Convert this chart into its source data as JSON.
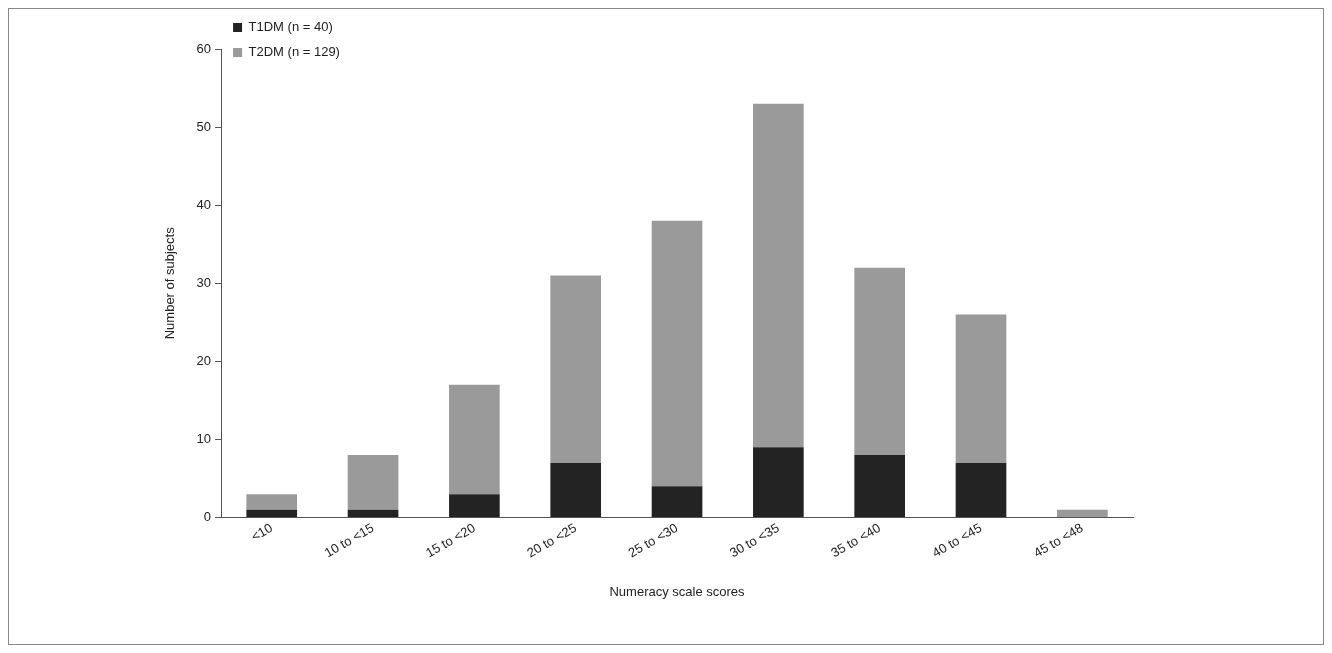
{
  "chart_data": {
    "type": "bar",
    "xlabel": "Numeracy scale scores",
    "ylabel": "Number of subjects",
    "categories": [
      "<10",
      "10 to <15",
      "15 to <20",
      "20 to <25",
      "25 to <30",
      "30 to <35",
      "35 to <40",
      "40 to <45",
      "45 to <48"
    ],
    "series": [
      {
        "name": "T1DM (n = 40)",
        "color": "#232323",
        "values": [
          1,
          1,
          3,
          7,
          4,
          9,
          8,
          7,
          0
        ]
      },
      {
        "name": "T2DM (n = 129)",
        "color": "#9a9a9a",
        "values": [
          2,
          7,
          14,
          24,
          34,
          44,
          24,
          19,
          1
        ]
      }
    ],
    "stacked": true,
    "ylim": [
      0,
      60
    ],
    "yticks": [
      0,
      10,
      20,
      30,
      40,
      50,
      60
    ],
    "grid": false,
    "legend": "top left"
  }
}
